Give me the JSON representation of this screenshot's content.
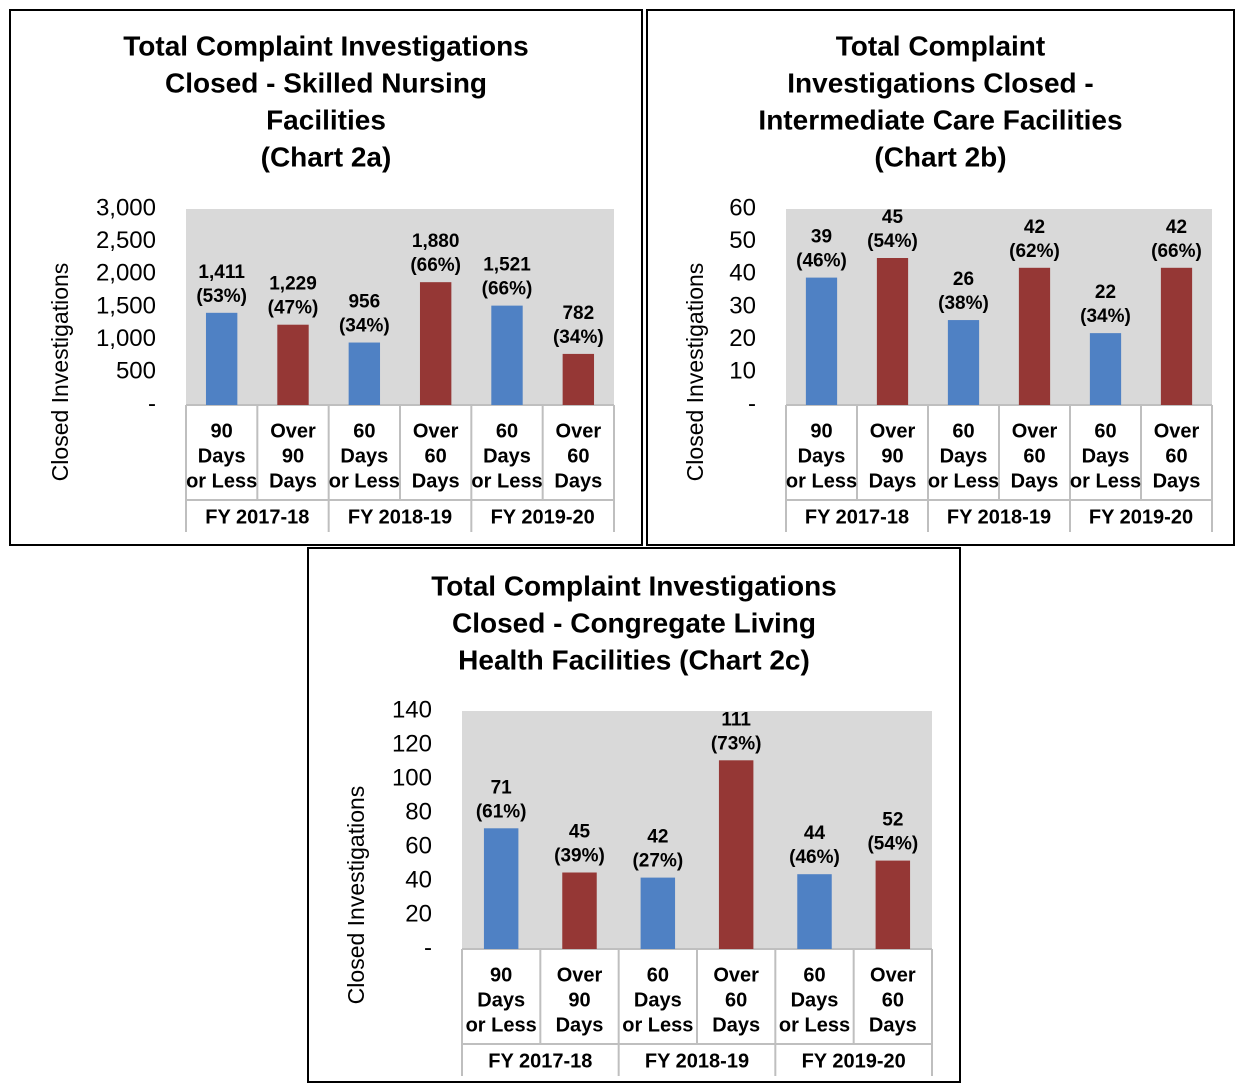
{
  "chart_data": [
    {
      "type": "bar",
      "title": [
        "Total Complaint Investigations",
        "Closed - Skilled Nursing",
        "Facilities",
        "(Chart 2a)"
      ],
      "y_label": "Closed Investigations",
      "categories": [
        [
          "90",
          "Days",
          "or Less"
        ],
        [
          "Over",
          "90",
          "Days"
        ],
        [
          "60",
          "Days",
          "or Less"
        ],
        [
          "Over",
          "60",
          "Days"
        ],
        [
          "60",
          "Days",
          "or Less"
        ],
        [
          "Over",
          "60",
          "Days"
        ]
      ],
      "groups": [
        "FY 2017-18",
        "FY 2018-19",
        "FY 2019-20"
      ],
      "values": [
        1411,
        1229,
        956,
        1880,
        1521,
        782
      ],
      "value_labels": [
        "1,411",
        "1,229",
        "956",
        "1,880",
        "1,521",
        "782"
      ],
      "percent_labels": [
        "(53%)",
        "(47%)",
        "(34%)",
        "(66%)",
        "(66%)",
        "(34%)"
      ],
      "colors": [
        "#4f81c4",
        "#953735",
        "#4f81c4",
        "#953735",
        "#4f81c4",
        "#953735"
      ],
      "ylim": [
        0,
        3000
      ],
      "yticks": [
        {
          "value": 0,
          "label": "-"
        },
        500,
        {
          "value": 1000,
          "label": "1,000"
        },
        {
          "value": 1500,
          "label": "1,500"
        },
        {
          "value": 2000,
          "label": "2,000"
        },
        {
          "value": 2500,
          "label": "2,500"
        },
        {
          "value": 3000,
          "label": "3,000"
        }
      ]
    },
    {
      "type": "bar",
      "title": [
        "Total Complaint",
        "Investigations Closed -",
        "Intermediate Care Facilities",
        "(Chart 2b)"
      ],
      "y_label": "Closed Investigations",
      "categories": [
        [
          "90",
          "Days",
          "or Less"
        ],
        [
          "Over",
          "90",
          "Days"
        ],
        [
          "60",
          "Days",
          "or Less"
        ],
        [
          "Over",
          "60",
          "Days"
        ],
        [
          "60",
          "Days",
          "or Less"
        ],
        [
          "Over",
          "60",
          "Days"
        ]
      ],
      "groups": [
        "FY 2017-18",
        "FY 2018-19",
        "FY 2019-20"
      ],
      "values": [
        39,
        45,
        26,
        42,
        22,
        42
      ],
      "percent_labels": [
        "(46%)",
        "(54%)",
        "(38%)",
        "(62%)",
        "(34%)",
        "(66%)"
      ],
      "colors": [
        "#4f81c4",
        "#953735",
        "#4f81c4",
        "#953735",
        "#4f81c4",
        "#953735"
      ],
      "ylim": [
        0,
        60
      ],
      "yticks": [
        {
          "value": 0,
          "label": "-"
        },
        10,
        20,
        30,
        40,
        50,
        60
      ]
    },
    {
      "type": "bar",
      "title": [
        "Total Complaint Investigations",
        "Closed - Congregate Living",
        "Health Facilities (Chart 2c)"
      ],
      "y_label": "Closed Investigations",
      "categories": [
        [
          "90",
          "Days",
          "or Less"
        ],
        [
          "Over",
          "90",
          "Days"
        ],
        [
          "60",
          "Days",
          "or Less"
        ],
        [
          "Over",
          "60",
          "Days"
        ],
        [
          "60",
          "Days",
          "or Less"
        ],
        [
          "Over",
          "60",
          "Days"
        ]
      ],
      "groups": [
        "FY 2017-18",
        "FY 2018-19",
        "FY 2019-20"
      ],
      "values": [
        71,
        45,
        42,
        111,
        44,
        52
      ],
      "percent_labels": [
        "(61%)",
        "(39%)",
        "(27%)",
        "(73%)",
        "(46%)",
        "(54%)"
      ],
      "colors": [
        "#4f81c4",
        "#953735",
        "#4f81c4",
        "#953735",
        "#4f81c4",
        "#953735"
      ],
      "ylim": [
        0,
        140
      ],
      "yticks": [
        {
          "value": 0,
          "label": "-"
        },
        20,
        40,
        60,
        80,
        100,
        120,
        140
      ]
    }
  ]
}
